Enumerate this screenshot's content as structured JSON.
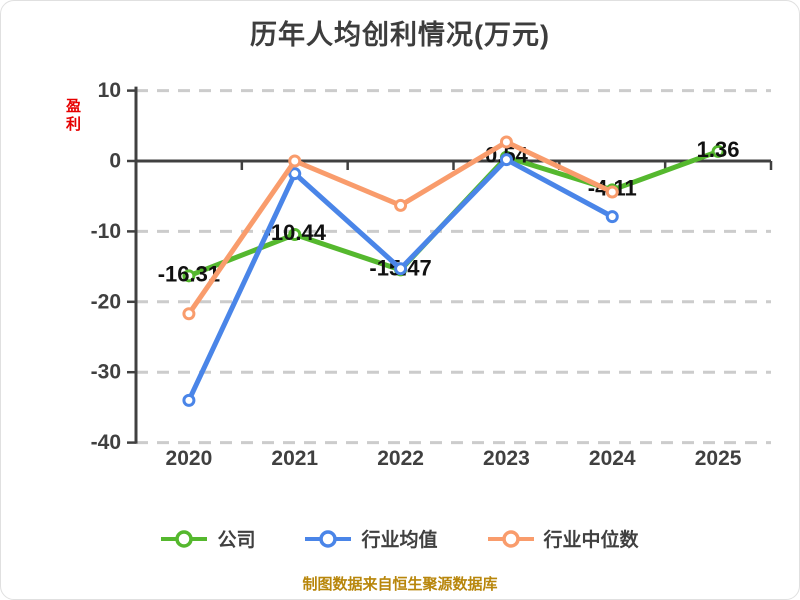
{
  "page": {
    "title": "历年人均创利情况(万元)",
    "footer": "制图数据来自恒生聚源数据库"
  },
  "colors": {
    "title_text": "#3d3d3d",
    "axis_line": "#404040",
    "axis_text": "#404040",
    "gridline": "#cccccc",
    "data_label": "#111111",
    "profit_label": "#e60000",
    "footer_text": "#b8860b",
    "marker_fill": "#ffffff"
  },
  "chart_data": {
    "type": "line",
    "title": "历年人均创利情况(万元)",
    "unit": "万元",
    "categories": [
      "2020",
      "2021",
      "2022",
      "2023",
      "2024",
      "2025"
    ],
    "y_ticks": [
      10,
      0,
      -10,
      -20,
      -30,
      -40
    ],
    "ylim": [
      -40,
      10
    ],
    "grid": "horizontal-dashed",
    "legend_position": "bottom",
    "profit_region_label": "盈利",
    "series": [
      {
        "name": "公司",
        "key": "company",
        "color": "#55b82e",
        "values": [
          -16.31,
          -10.44,
          -15.47,
          0.54,
          -4.11,
          1.36
        ],
        "labels": [
          "-16.31",
          "-10.44",
          "-15.47",
          "0.54",
          "-4.11",
          "1.36"
        ],
        "show_labels": true
      },
      {
        "name": "行业均值",
        "key": "industry-average",
        "color": "#4a85e8",
        "values": [
          -34,
          -1.8,
          -15.3,
          0.2,
          -7.9,
          null
        ],
        "labels": [],
        "show_labels": false
      },
      {
        "name": "行业中位数",
        "key": "industry-median",
        "color": "#f99c6c",
        "values": [
          -21.7,
          0,
          -6.3,
          2.7,
          -4.4,
          null
        ],
        "labels": [],
        "show_labels": false
      }
    ]
  }
}
